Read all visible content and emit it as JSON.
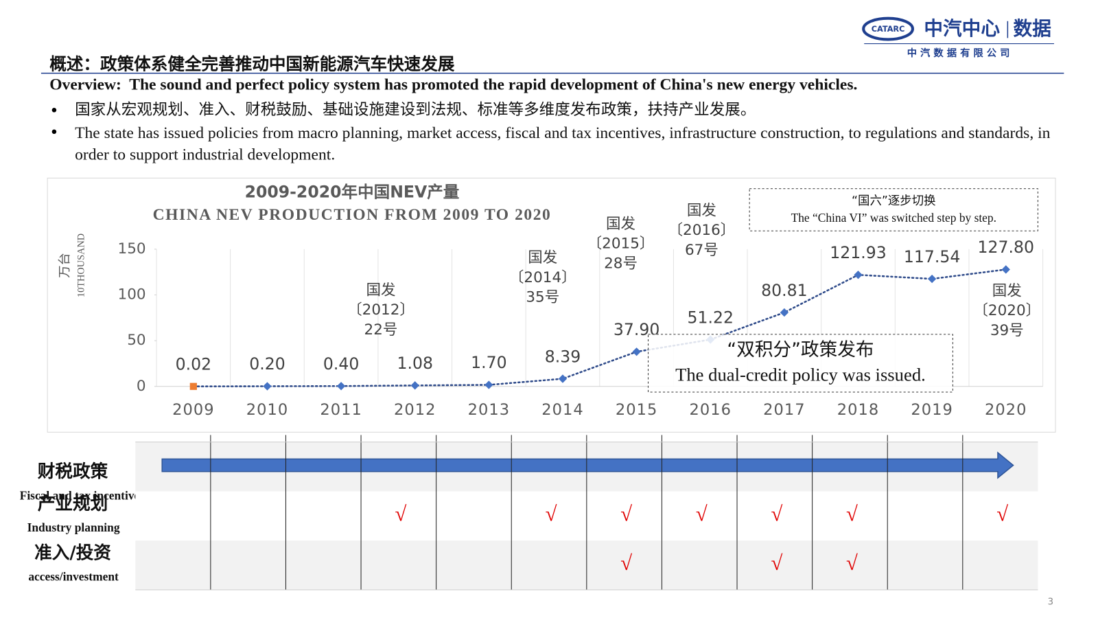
{
  "header": {
    "logo_mark": "CATARC",
    "logo_name": "中汽中心",
    "logo_sub": "数据",
    "company": "中 汽 数 据 有 限 公 司",
    "title_cn": "概述：政策体系健全完善推动中国新能源汽车快速发展",
    "title_en": "Overview:  The sound and perfect policy system has promoted the rapid development of China's new energy vehicles."
  },
  "bullets": [
    "国家从宏观规划、准入、财税鼓励、基础设施建设到法规、标准等多维度发布政策，扶持产业发展。",
    "The state has issued policies from macro planning, market access, fiscal and tax incentives, infrastructure construction, to regulations and standards, in order to support industrial development."
  ],
  "chart_data": {
    "type": "line",
    "title": "2009-2020年中国NEV产量",
    "subtitle": "CHINA NEV PRODUCTION FROM 2009 TO 2020",
    "y_label_cn": "万台",
    "y_label_en": "10THOUSAND",
    "categories": [
      "2009",
      "2010",
      "2011",
      "2012",
      "2013",
      "2014",
      "2015",
      "2016",
      "2017",
      "2018",
      "2019",
      "2020"
    ],
    "values": [
      0.02,
      0.2,
      0.4,
      1.08,
      1.7,
      8.39,
      37.9,
      51.22,
      80.81,
      121.93,
      117.54,
      127.8
    ],
    "value_labels": [
      "0.02",
      "0.20",
      "0.40",
      "1.08",
      "1.70",
      "8.39",
      "37.90",
      "51.22",
      "80.81",
      "121.93",
      "117.54",
      "127.80"
    ],
    "color": "#4472c4",
    "line_color": "#2f4b8a",
    "first_point_color": "#ed7d31",
    "ylim": [
      0,
      150
    ],
    "yticks": [
      0,
      50,
      100,
      150
    ],
    "grid": false,
    "annotations": [
      {
        "lines": [
          "国发",
          "〔2012〕",
          "22号"
        ]
      },
      {
        "lines": [
          "国发",
          "〔2014〕",
          "35号"
        ]
      },
      {
        "lines": [
          "国发",
          "〔2015〕",
          "28号"
        ]
      },
      {
        "lines": [
          "国发",
          "〔2016〕",
          "67号"
        ]
      },
      {
        "lines": [
          "国发",
          "〔2020〕",
          "39号"
        ]
      }
    ],
    "callouts": [
      {
        "lines": [
          "“国六”逐步切换",
          "The “China VI” was switched step by step."
        ]
      },
      {
        "lines": [
          "“双积分”政策发布",
          "The dual-credit policy was issued."
        ]
      }
    ]
  },
  "policy_table": {
    "rows": [
      {
        "label_cn": "财税政策",
        "label_en": "Fiscal and tax incentives",
        "arrow": true
      },
      {
        "label_cn": "产业规划",
        "label_en": "Industry planning",
        "cells": [
          null,
          null,
          null,
          "√",
          null,
          "√",
          "√",
          "√",
          "√",
          "√",
          null,
          "√"
        ]
      },
      {
        "label_cn": "准入/投资",
        "label_en": "access/investment",
        "cells": [
          null,
          null,
          null,
          null,
          null,
          null,
          "√",
          null,
          "√",
          "√",
          null,
          null
        ]
      }
    ]
  },
  "page_number": "3"
}
